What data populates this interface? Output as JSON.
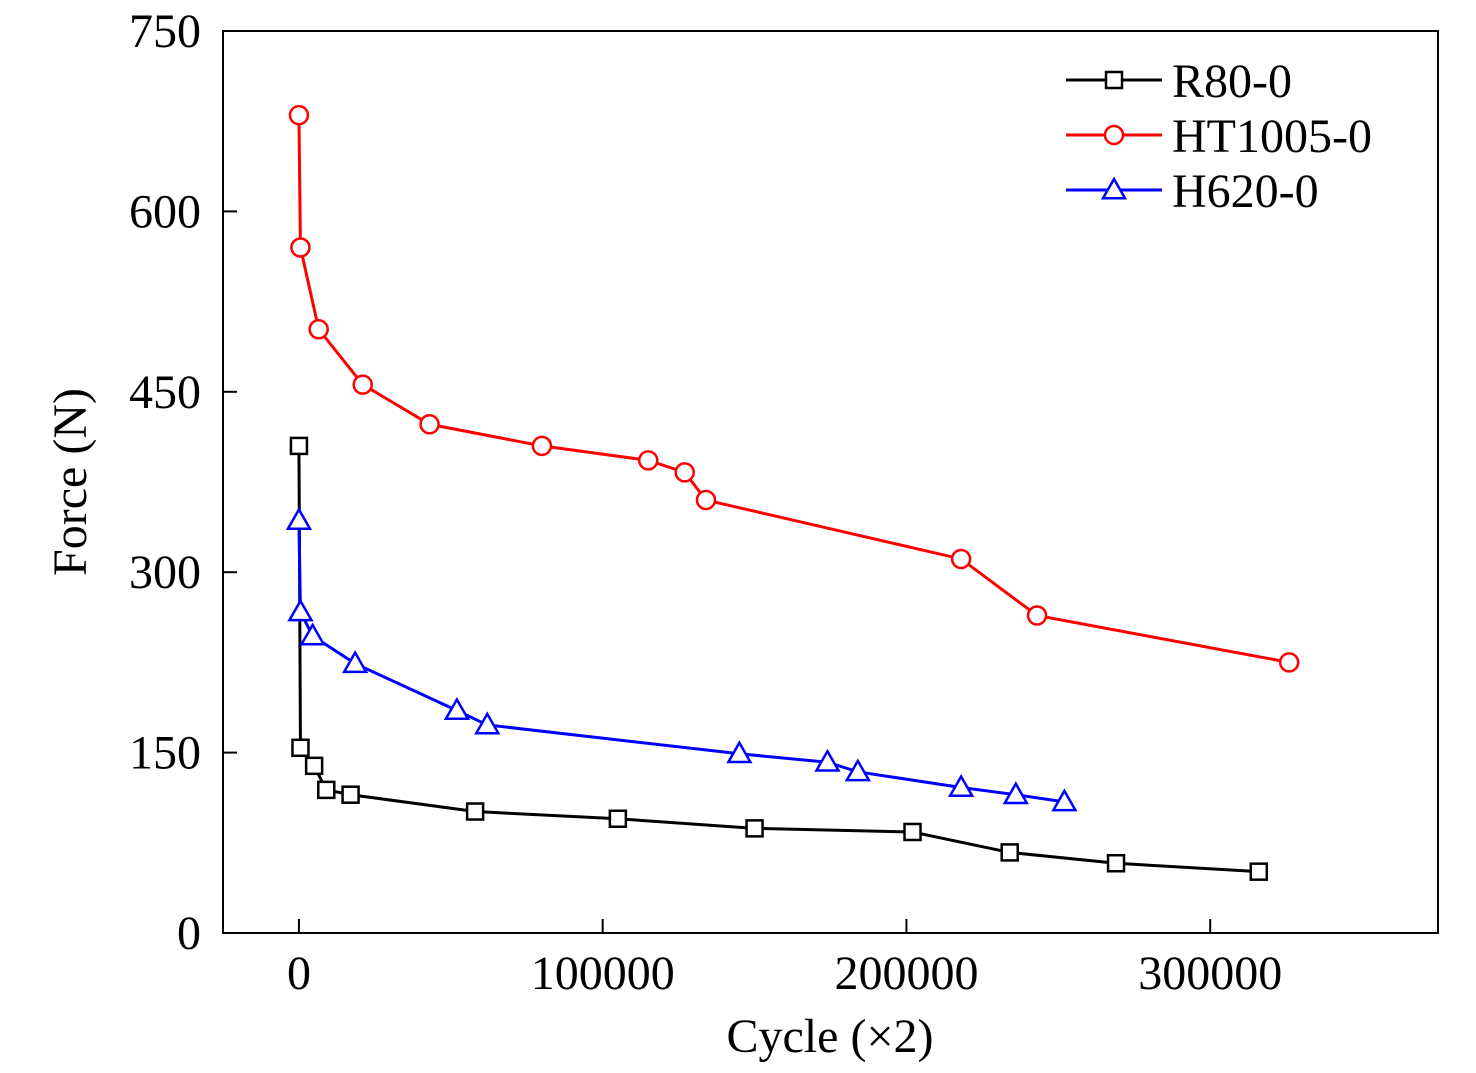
{
  "chart_data": {
    "type": "line",
    "title": "",
    "xlabel": "Cycle (×2)",
    "ylabel": "Force (N)",
    "xlim": [
      -25000,
      375000
    ],
    "ylim": [
      0,
      750
    ],
    "xticks": [
      0,
      100000,
      200000,
      300000
    ],
    "xtick_labels": [
      "0",
      "100000",
      "200000",
      "300000"
    ],
    "yticks": [
      0,
      150,
      300,
      450,
      600,
      750
    ],
    "ytick_labels": [
      "0",
      "150",
      "300",
      "450",
      "600",
      "750"
    ],
    "grid": false,
    "legend_position": "top-right",
    "series": [
      {
        "name": "R80-0",
        "color": "#000000",
        "marker": "square",
        "x": [
          0,
          500,
          5000,
          9000,
          17000,
          58000,
          105000,
          150000,
          202000,
          234000,
          269000,
          316000
        ],
        "y": [
          405,
          154,
          139,
          119,
          115,
          101,
          95,
          87,
          84,
          67,
          58,
          51
        ]
      },
      {
        "name": "HT1005-0",
        "color": "#ff0000",
        "marker": "circle",
        "x": [
          0,
          500,
          6500,
          21000,
          43000,
          80000,
          115000,
          127000,
          134000,
          218000,
          243000,
          326000
        ],
        "y": [
          680,
          570,
          502,
          456,
          423,
          405,
          393,
          383,
          360,
          311,
          264,
          225
        ]
      },
      {
        "name": "H620-0",
        "color": "#0000ff",
        "marker": "triangle",
        "x": [
          0,
          500,
          4500,
          18500,
          52000,
          62000,
          145000,
          174000,
          184000,
          218000,
          236000,
          252000
        ],
        "y": [
          343,
          267,
          247,
          224,
          185,
          173,
          149,
          142,
          134,
          121,
          115,
          109
        ]
      }
    ]
  }
}
